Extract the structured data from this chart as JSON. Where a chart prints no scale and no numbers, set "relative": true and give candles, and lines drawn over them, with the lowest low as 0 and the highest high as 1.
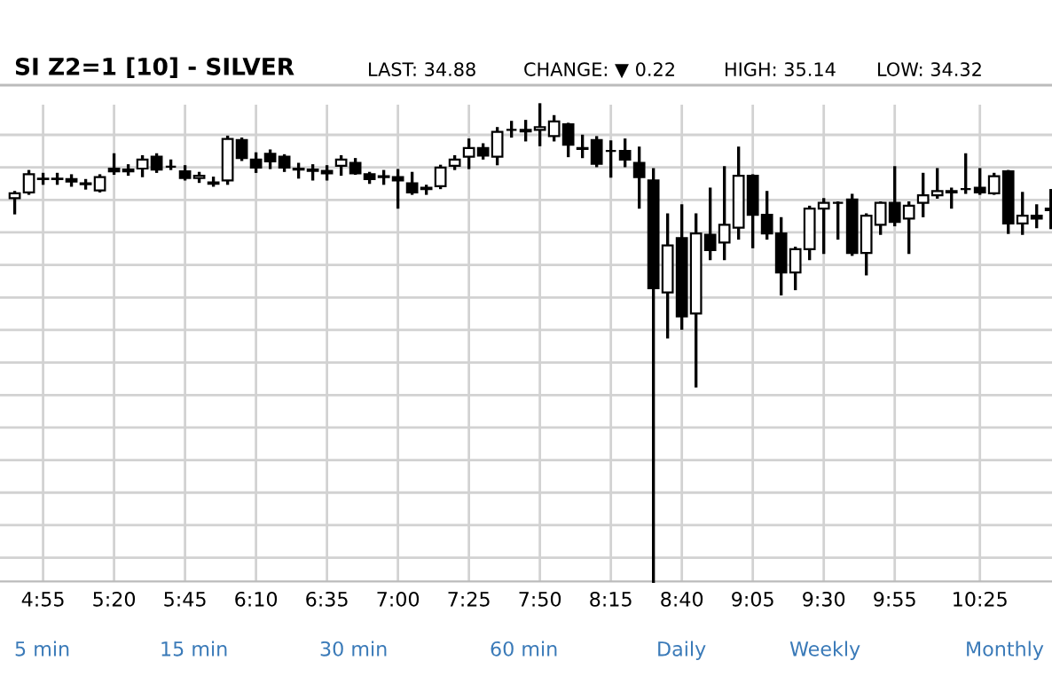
{
  "chart_data": {
    "type": "candlestick",
    "title": "SI Z2=1 [10] - SILVER",
    "relative": true,
    "grid": true,
    "color": "#000000",
    "x": [
      4.75,
      4.8333,
      4.9167,
      5.0,
      5.0833,
      5.1667,
      5.25,
      5.3333,
      5.4167,
      5.5,
      5.5833,
      5.6667,
      5.75,
      5.8333,
      5.9167,
      6.0,
      6.0833,
      6.1667,
      6.25,
      6.3333,
      6.4167,
      6.5,
      6.5833,
      6.6667,
      6.75,
      6.8333,
      6.9167,
      7.0,
      7.0833,
      7.1667,
      7.25,
      7.3333,
      7.4167,
      7.5,
      7.5833,
      7.6667,
      7.75,
      7.8333,
      7.9167,
      8.0,
      8.0833,
      8.1667,
      8.25,
      8.3333,
      8.4167,
      8.5,
      8.5833,
      8.6667,
      8.75,
      8.8333,
      8.9167,
      9.0,
      9.0833,
      9.1667,
      9.25,
      9.3333,
      9.4167,
      9.5,
      9.5833,
      9.6667,
      9.75,
      9.8333,
      9.9167,
      10.0,
      10.0833,
      10.1667,
      10.25,
      10.3333,
      10.4167,
      10.5,
      10.5833,
      10.6667,
      10.75,
      10.8333
    ],
    "ohlc": [
      [
        0.804,
        0.816,
        0.773,
        0.814
      ],
      [
        0.816,
        0.86,
        0.814,
        0.854
      ],
      [
        0.844,
        0.854,
        0.835,
        0.845
      ],
      [
        0.845,
        0.854,
        0.835,
        0.844
      ],
      [
        0.844,
        0.851,
        0.831,
        0.839
      ],
      [
        0.835,
        0.841,
        0.825,
        0.833
      ],
      [
        0.82,
        0.851,
        0.819,
        0.848
      ],
      [
        0.866,
        0.895,
        0.856,
        0.86
      ],
      [
        0.86,
        0.872,
        0.854,
        0.864
      ],
      [
        0.866,
        0.891,
        0.851,
        0.885
      ],
      [
        0.891,
        0.895,
        0.86,
        0.864
      ],
      [
        0.87,
        0.882,
        0.866,
        0.87
      ],
      [
        0.86,
        0.87,
        0.844,
        0.846
      ],
      [
        0.846,
        0.856,
        0.839,
        0.851
      ],
      [
        0.837,
        0.846,
        0.831,
        0.834
      ],
      [
        0.841,
        0.932,
        0.835,
        0.928
      ],
      [
        0.926,
        0.928,
        0.885,
        0.888
      ],
      [
        0.885,
        0.897,
        0.86,
        0.868
      ],
      [
        0.897,
        0.903,
        0.868,
        0.881
      ],
      [
        0.891,
        0.893,
        0.862,
        0.868
      ],
      [
        0.866,
        0.875,
        0.848,
        0.864
      ],
      [
        0.864,
        0.872,
        0.844,
        0.861
      ],
      [
        0.861,
        0.87,
        0.844,
        0.856
      ],
      [
        0.872,
        0.891,
        0.854,
        0.885
      ],
      [
        0.878,
        0.885,
        0.856,
        0.856
      ],
      [
        0.854,
        0.856,
        0.837,
        0.844
      ],
      [
        0.848,
        0.86,
        0.835,
        0.85
      ],
      [
        0.848,
        0.862,
        0.785,
        0.841
      ],
      [
        0.835,
        0.856,
        0.814,
        0.816
      ],
      [
        0.823,
        0.829,
        0.814,
        0.826
      ],
      [
        0.829,
        0.871,
        0.826,
        0.868
      ],
      [
        0.872,
        0.891,
        0.866,
        0.885
      ],
      [
        0.891,
        0.926,
        0.868,
        0.909
      ],
      [
        0.909,
        0.916,
        0.888,
        0.893
      ],
      [
        0.891,
        0.95,
        0.876,
        0.943
      ],
      [
        0.947,
        0.963,
        0.934,
        0.947
      ],
      [
        0.947,
        0.965,
        0.926,
        0.944
      ],
      [
        0.947,
        1.0,
        0.916,
        0.953
      ],
      [
        0.934,
        0.975,
        0.926,
        0.965
      ],
      [
        0.959,
        0.959,
        0.893,
        0.916
      ],
      [
        0.909,
        0.934,
        0.891,
        0.907
      ],
      [
        0.926,
        0.931,
        0.872,
        0.876
      ],
      [
        0.903,
        0.922,
        0.85,
        0.903
      ],
      [
        0.903,
        0.926,
        0.872,
        0.885
      ],
      [
        0.878,
        0.909,
        0.785,
        0.848
      ],
      [
        0.841,
        0.864,
        0.0,
        0.615
      ],
      [
        0.606,
        0.769,
        0.513,
        0.705
      ],
      [
        0.72,
        0.788,
        0.531,
        0.556
      ],
      [
        0.562,
        0.769,
        0.41,
        0.73
      ],
      [
        0.727,
        0.823,
        0.677,
        0.695
      ],
      [
        0.711,
        0.868,
        0.677,
        0.748
      ],
      [
        0.742,
        0.909,
        0.72,
        0.851
      ],
      [
        0.851,
        0.851,
        0.702,
        0.769
      ],
      [
        0.769,
        0.816,
        0.72,
        0.73
      ],
      [
        0.73,
        0.761,
        0.603,
        0.648
      ],
      [
        0.648,
        0.699,
        0.614,
        0.697
      ],
      [
        0.697,
        0.785,
        0.677,
        0.782
      ],
      [
        0.782,
        0.801,
        0.69,
        0.794
      ],
      [
        0.794,
        0.794,
        0.72,
        0.794
      ],
      [
        0.801,
        0.81,
        0.686,
        0.689
      ],
      [
        0.689,
        0.769,
        0.645,
        0.767
      ],
      [
        0.748,
        0.794,
        0.73,
        0.794
      ],
      [
        0.794,
        0.868,
        0.748,
        0.754
      ],
      [
        0.761,
        0.794,
        0.69,
        0.788
      ],
      [
        0.794,
        0.854,
        0.767,
        0.81
      ],
      [
        0.81,
        0.864,
        0.806,
        0.819
      ],
      [
        0.816,
        0.823,
        0.785,
        0.819
      ],
      [
        0.823,
        0.895,
        0.816,
        0.823
      ],
      [
        0.826,
        0.864,
        0.814,
        0.816
      ],
      [
        0.814,
        0.854,
        0.814,
        0.85
      ],
      [
        0.86,
        0.86,
        0.732,
        0.751
      ],
      [
        0.751,
        0.814,
        0.73,
        0.767
      ],
      [
        0.767,
        0.788,
        0.744,
        0.761
      ],
      [
        0.779,
        0.82,
        0.742,
        0.782
      ]
    ],
    "xlim": [
      4.6637,
      10.84
    ],
    "xticks": [
      {
        "value": 4.9167,
        "label": "4:55"
      },
      {
        "value": 5.3333,
        "label": "5:20"
      },
      {
        "value": 5.75,
        "label": "5:45"
      },
      {
        "value": 6.1667,
        "label": "6:10"
      },
      {
        "value": 6.5833,
        "label": "6:35"
      },
      {
        "value": 7.0,
        "label": "7:00"
      },
      {
        "value": 7.4167,
        "label": "7:25"
      },
      {
        "value": 7.8333,
        "label": "7:50"
      },
      {
        "value": 8.25,
        "label": "8:15"
      },
      {
        "value": 8.6667,
        "label": "8:40"
      },
      {
        "value": 9.0833,
        "label": "9:05"
      },
      {
        "value": 9.5,
        "label": "9:30"
      },
      {
        "value": 9.9167,
        "label": "9:55"
      },
      {
        "value": 10.4167,
        "label": "10:25"
      }
    ],
    "annotations": [
      "LAST: 34.88",
      "CHANGE: ▼ 0.22",
      "HIGH: 35.14",
      "LOW: 34.32",
      "5 min",
      "15 min",
      "30 min",
      "60 min",
      "Daily",
      "Weekly",
      "Monthly"
    ]
  }
}
